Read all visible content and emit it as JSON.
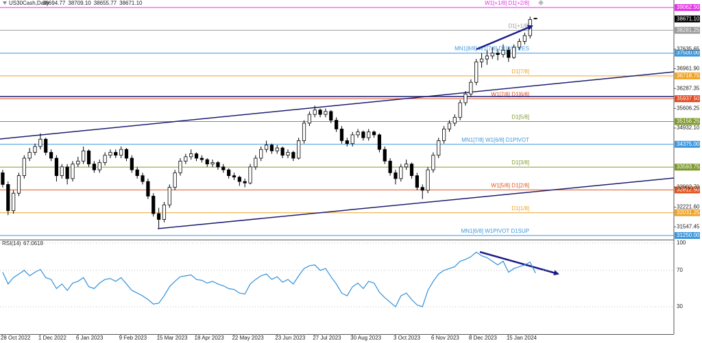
{
  "chart_data": {
    "type": "candlestick",
    "symbol": "US30Cash,Daily",
    "header_values": [
      "38694.77",
      "38709.10",
      "38655.77",
      "38671.10"
    ],
    "ylim": [
      31109,
      39320
    ],
    "yticks": [
      {
        "value": 37635.65,
        "label": "37635.65"
      },
      {
        "value": 36961.9,
        "label": "36961.90"
      },
      {
        "value": 36287.35,
        "label": "36287.35"
      },
      {
        "value": 35606.25,
        "label": "35606.25"
      },
      {
        "value": 34932.1,
        "label": "34932.10"
      },
      {
        "value": 32902.7,
        "label": "32902.70"
      },
      {
        "value": 32221.6,
        "label": "32221.60"
      },
      {
        "value": 31547.45,
        "label": "31547.45"
      }
    ],
    "current_price": {
      "value": 38671.1,
      "label": "38671.10"
    },
    "levels": [
      {
        "value": 39062.5,
        "label": "39062.50",
        "name": "W1[+1/8] D1[+2/8]",
        "color": "#e533e5"
      },
      {
        "value": 38281.25,
        "label": "38281.25",
        "name": "D1[+1/8]",
        "color": "#9a9a9a"
      },
      {
        "value": 37500,
        "label": "37500.00",
        "name": "MN1[8/8] W1[7/8] D1[8/8] RES",
        "color": "#3d97dc"
      },
      {
        "value": 36718.75,
        "label": "36718.75",
        "name": "D1[7/8]",
        "color": "#efa224"
      },
      {
        "value": 35937.5,
        "label": "35937.50",
        "name": "W1[7/8] D1[6/8]",
        "color": "#e0451c"
      },
      {
        "value": 35156.25,
        "label": "35156.25",
        "name": "D1[5/8]",
        "color": "#7d9a2c"
      },
      {
        "value": 34375,
        "label": "34375.00",
        "name": "MN1[7/8] W1[6/8] D1PIVOT",
        "color": "#3d97dc"
      },
      {
        "value": 33593.75,
        "label": "33593.75",
        "name": "D1[3/8]",
        "color": "#7d9a2c"
      },
      {
        "value": 32812.5,
        "label": "32812.50",
        "name": "W1[5/8] D1[2/8]",
        "color": "#e0521c"
      },
      {
        "value": 32031.25,
        "label": "32031.25",
        "name": "D1[1/8]",
        "color": "#efa224"
      },
      {
        "value": 31250,
        "label": "31250.00",
        "name": "MN1[6/8] W1PIVOT D1SUP",
        "color": "#3d97dc"
      }
    ],
    "categories": [
      "28 Oct 2022",
      null,
      null,
      null,
      null,
      null,
      null,
      "1 Dec 2022",
      null,
      null,
      null,
      null,
      null,
      null,
      "6 Jan 2023",
      null,
      null,
      null,
      null,
      null,
      null,
      null,
      "9 Feb 2023",
      null,
      null,
      null,
      null,
      null,
      null,
      "15 Mar 2023",
      null,
      null,
      null,
      null,
      null,
      null,
      "18 Apr 2023",
      null,
      null,
      null,
      null,
      null,
      null,
      "22 May 2023",
      null,
      null,
      null,
      null,
      null,
      null,
      null,
      "23 Jun 2023",
      null,
      null,
      null,
      null,
      null,
      null,
      "27 Jul 2023",
      null,
      null,
      null,
      null,
      null,
      null,
      "30 Aug 2023",
      null,
      null,
      null,
      null,
      null,
      null,
      null,
      "3 Oct 2023",
      null,
      null,
      null,
      null,
      null,
      null,
      "6 Nov 2023",
      null,
      null,
      null,
      null,
      null,
      null,
      "8 Dec 2023",
      null,
      null,
      null,
      null,
      null,
      null,
      "15 Jan 2024",
      null,
      null,
      null,
      null,
      null
    ],
    "ohlc": [
      [
        33400,
        33500,
        32900,
        33000
      ],
      [
        33000,
        33100,
        31950,
        32100
      ],
      [
        32100,
        32800,
        32000,
        32700
      ],
      [
        32700,
        33400,
        32600,
        33300
      ],
      [
        33300,
        34000,
        33200,
        33900
      ],
      [
        33900,
        34250,
        33800,
        34100
      ],
      [
        34100,
        34400,
        34000,
        34300
      ],
      [
        34300,
        34750,
        34200,
        34550
      ],
      [
        34550,
        34600,
        34000,
        34100
      ],
      [
        34100,
        34200,
        33800,
        33900
      ],
      [
        33900,
        34000,
        33100,
        33300
      ],
      [
        33300,
        33700,
        33200,
        33600
      ],
      [
        33600,
        33700,
        33000,
        33200
      ],
      [
        33200,
        33800,
        33100,
        33700
      ],
      [
        33700,
        33950,
        33600,
        33800
      ],
      [
        33800,
        34300,
        33700,
        34150
      ],
      [
        34150,
        34200,
        33600,
        33700
      ],
      [
        33700,
        33800,
        33400,
        33500
      ],
      [
        33500,
        33850,
        33400,
        33750
      ],
      [
        33750,
        34100,
        33650,
        34000
      ],
      [
        34000,
        34200,
        33900,
        34100
      ],
      [
        34100,
        34200,
        33900,
        34000
      ],
      [
        34000,
        34300,
        33900,
        34200
      ],
      [
        34200,
        34250,
        33800,
        33900
      ],
      [
        33900,
        34000,
        33400,
        33500
      ],
      [
        33500,
        33600,
        33200,
        33300
      ],
      [
        33300,
        33400,
        33000,
        33100
      ],
      [
        33100,
        33200,
        32500,
        32600
      ],
      [
        32600,
        32700,
        31900,
        32000
      ],
      [
        32000,
        32200,
        31500,
        31800
      ],
      [
        31800,
        32400,
        31700,
        32300
      ],
      [
        32300,
        33000,
        32200,
        32900
      ],
      [
        32900,
        33500,
        32800,
        33400
      ],
      [
        33400,
        33900,
        33300,
        33800
      ],
      [
        33800,
        34050,
        33700,
        33950
      ],
      [
        33950,
        34200,
        33850,
        34050
      ],
      [
        34050,
        34100,
        33800,
        33900
      ],
      [
        33900,
        34000,
        33750,
        33850
      ],
      [
        33850,
        33900,
        33600,
        33700
      ],
      [
        33700,
        33850,
        33600,
        33750
      ],
      [
        33750,
        33800,
        33500,
        33600
      ],
      [
        33600,
        33700,
        33400,
        33500
      ],
      [
        33500,
        33550,
        33200,
        33300
      ],
      [
        33300,
        33400,
        33150,
        33250
      ],
      [
        33250,
        33300,
        32950,
        33100
      ],
      [
        33100,
        33200,
        32900,
        33050
      ],
      [
        33050,
        33700,
        33000,
        33600
      ],
      [
        33600,
        34000,
        33500,
        33900
      ],
      [
        33900,
        34300,
        33800,
        34200
      ],
      [
        34200,
        34500,
        34100,
        34350
      ],
      [
        34350,
        34400,
        34050,
        34150
      ],
      [
        34150,
        34350,
        34050,
        34250
      ],
      [
        34250,
        34300,
        33900,
        34000
      ],
      [
        34000,
        34200,
        33900,
        34100
      ],
      [
        34100,
        34150,
        33800,
        33900
      ],
      [
        33900,
        34600,
        33850,
        34500
      ],
      [
        34500,
        35200,
        34400,
        35100
      ],
      [
        35100,
        35500,
        35000,
        35400
      ],
      [
        35400,
        35700,
        35300,
        35550
      ],
      [
        35550,
        35600,
        35300,
        35400
      ],
      [
        35400,
        35600,
        35300,
        35500
      ],
      [
        35500,
        35550,
        35100,
        35200
      ],
      [
        35200,
        35300,
        34800,
        34900
      ],
      [
        34900,
        35000,
        34400,
        34500
      ],
      [
        34500,
        34600,
        34300,
        34400
      ],
      [
        34400,
        34800,
        34300,
        34700
      ],
      [
        34700,
        34900,
        34600,
        34800
      ],
      [
        34800,
        34850,
        34500,
        34600
      ],
      [
        34600,
        34900,
        34500,
        34800
      ],
      [
        34800,
        34850,
        34600,
        34700
      ],
      [
        34700,
        34750,
        34100,
        34200
      ],
      [
        34200,
        34300,
        33700,
        33800
      ],
      [
        33800,
        33900,
        33300,
        33400
      ],
      [
        33400,
        33500,
        33000,
        33200
      ],
      [
        33200,
        33700,
        33100,
        33600
      ],
      [
        33600,
        33850,
        33500,
        33700
      ],
      [
        33700,
        33750,
        33200,
        33300
      ],
      [
        33300,
        33400,
        32800,
        32900
      ],
      [
        32900,
        33000,
        32500,
        32800
      ],
      [
        32800,
        33600,
        32700,
        33500
      ],
      [
        33500,
        34100,
        33400,
        34000
      ],
      [
        34000,
        34600,
        33900,
        34500
      ],
      [
        34500,
        35000,
        34400,
        34900
      ],
      [
        34900,
        35200,
        34800,
        35100
      ],
      [
        35100,
        35400,
        35000,
        35300
      ],
      [
        35300,
        35900,
        35200,
        35800
      ],
      [
        35800,
        36200,
        35700,
        36100
      ],
      [
        36100,
        36600,
        36000,
        36500
      ],
      [
        36500,
        37300,
        36400,
        37200
      ],
      [
        37200,
        37500,
        37000,
        37300
      ],
      [
        37300,
        37600,
        37100,
        37400
      ],
      [
        37400,
        37700,
        37300,
        37500
      ],
      [
        37500,
        37650,
        37250,
        37450
      ],
      [
        37450,
        37800,
        37350,
        37600
      ],
      [
        37600,
        37700,
        37200,
        37350
      ],
      [
        37350,
        37800,
        37300,
        37700
      ],
      [
        37700,
        38000,
        37600,
        37900
      ],
      [
        37900,
        38200,
        37800,
        38100
      ],
      [
        38100,
        38750,
        38000,
        38650
      ],
      [
        38694.77,
        38709.1,
        38655.77,
        38671.1
      ]
    ],
    "rsi": {
      "name": "RSI(14)",
      "color": "#2f8fd8",
      "ylim": [
        0,
        103
      ],
      "yticks": [
        100,
        70,
        30
      ],
      "values": [
        68,
        55,
        62,
        66,
        70,
        64,
        68,
        71,
        62,
        60,
        50,
        55,
        48,
        56,
        58,
        62,
        52,
        50,
        56,
        60,
        61,
        58,
        62,
        55,
        48,
        45,
        42,
        38,
        33,
        34,
        42,
        52,
        58,
        63,
        64,
        65,
        60,
        59,
        56,
        58,
        55,
        53,
        50,
        49,
        45,
        44,
        55,
        60,
        64,
        66,
        60,
        63,
        57,
        60,
        55,
        64,
        72,
        75,
        76,
        70,
        72,
        63,
        55,
        45,
        42,
        52,
        56,
        50,
        58,
        56,
        46,
        40,
        35,
        30,
        42,
        45,
        38,
        32,
        30,
        48,
        58,
        66,
        70,
        72,
        74,
        80,
        82,
        85,
        90,
        86,
        84,
        80,
        76,
        80,
        68,
        72,
        74,
        76,
        79,
        67.0618
      ]
    }
  }
}
